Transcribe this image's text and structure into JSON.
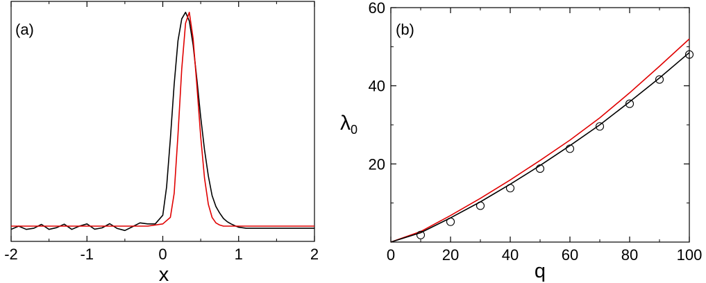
{
  "chart_data": [
    {
      "type": "line",
      "panel_label": "(a)",
      "xlabel": "x",
      "ylabel": "",
      "xlim": [
        -2,
        2
      ],
      "ylim": [
        -0.05,
        1.05
      ],
      "xticks": [
        -2,
        -1,
        0,
        1,
        2
      ],
      "x_tick_labels": [
        "-2",
        "-1",
        "0",
        "1",
        "2"
      ],
      "y_ticks_unlabeled": true,
      "grid": false,
      "series": [
        {
          "color": "#000000",
          "x": [
            -2.0,
            -1.9,
            -1.8,
            -1.7,
            -1.6,
            -1.5,
            -1.4,
            -1.3,
            -1.2,
            -1.1,
            -1.0,
            -0.9,
            -0.8,
            -0.7,
            -0.6,
            -0.5,
            -0.4,
            -0.3,
            -0.2,
            -0.1,
            0.0,
            0.05,
            0.1,
            0.15,
            0.2,
            0.25,
            0.3,
            0.35,
            0.4,
            0.45,
            0.5,
            0.55,
            0.6,
            0.65,
            0.7,
            0.75,
            0.8,
            0.85,
            0.9,
            0.95,
            1.0,
            1.1,
            1.2,
            1.4,
            1.6,
            1.8,
            2.0
          ],
          "y": [
            0.005,
            0.02,
            0.005,
            0.01,
            0.028,
            0.005,
            0.013,
            0.029,
            0.005,
            0.02,
            0.03,
            0.006,
            0.012,
            0.031,
            0.009,
            0.0,
            0.017,
            0.035,
            0.03,
            0.03,
            0.07,
            0.2,
            0.42,
            0.67,
            0.87,
            0.97,
            1.0,
            0.96,
            0.85,
            0.69,
            0.52,
            0.37,
            0.25,
            0.16,
            0.11,
            0.08,
            0.055,
            0.04,
            0.03,
            0.022,
            0.015,
            0.01,
            0.01,
            0.01,
            0.01,
            0.01,
            0.01
          ]
        },
        {
          "color": "#e00000",
          "x": [
            -2.0,
            -1.5,
            -1.0,
            -0.5,
            -0.2,
            0.0,
            0.1,
            0.15,
            0.2,
            0.25,
            0.3,
            0.35,
            0.4,
            0.45,
            0.5,
            0.55,
            0.6,
            0.65,
            0.7,
            0.75,
            0.8,
            0.9,
            1.0,
            1.5,
            2.0
          ],
          "y": [
            0.02,
            0.02,
            0.02,
            0.02,
            0.02,
            0.03,
            0.06,
            0.17,
            0.44,
            0.74,
            0.95,
            1.0,
            0.88,
            0.66,
            0.43,
            0.24,
            0.12,
            0.06,
            0.035,
            0.025,
            0.02,
            0.02,
            0.02,
            0.02,
            0.02
          ]
        }
      ]
    },
    {
      "type": "line",
      "panel_label": "(b)",
      "xlabel": "q",
      "ylabel": "λ",
      "ylabel_sub": "0",
      "xlim": [
        0,
        100
      ],
      "ylim": [
        0,
        60
      ],
      "xticks": [
        0,
        20,
        40,
        60,
        80,
        100
      ],
      "x_tick_labels": [
        "0",
        "20",
        "40",
        "60",
        "80",
        "100"
      ],
      "yticks": [
        20,
        40,
        60
      ],
      "y_tick_labels": [
        "20",
        "40",
        "60"
      ],
      "grid": false,
      "series": [
        {
          "color": "#e00000",
          "marker": "none",
          "x": [
            0,
            10,
            20,
            30,
            40,
            50,
            60,
            70,
            80,
            90,
            100
          ],
          "y": [
            0,
            2.7,
            6.8,
            11.2,
            15.9,
            20.9,
            26.1,
            31.8,
            38.2,
            45.0,
            52.0
          ]
        },
        {
          "color": "#000000",
          "marker": "none",
          "x": [
            0,
            10,
            20,
            30,
            40,
            50,
            60,
            70,
            80,
            90,
            100
          ],
          "y": [
            0,
            2.4,
            6.2,
            10.3,
            14.8,
            19.6,
            24.7,
            30.0,
            35.9,
            42.0,
            48.5
          ]
        },
        {
          "color": "#000000",
          "marker": "circle",
          "x": [
            10,
            20,
            30,
            40,
            50,
            60,
            70,
            80,
            90,
            100
          ],
          "y": [
            1.8,
            5.2,
            9.3,
            13.8,
            18.8,
            23.9,
            29.6,
            35.4,
            41.6,
            48.0
          ]
        }
      ]
    }
  ]
}
